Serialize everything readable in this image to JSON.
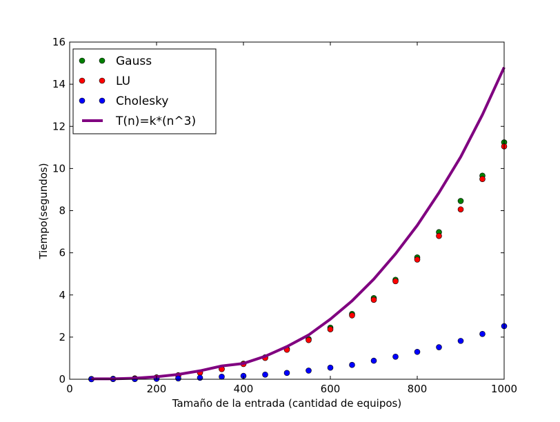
{
  "chart_data": {
    "type": "scatter",
    "title": "",
    "xlabel": "Tamaño de la entrada (cantidad de equipos)",
    "ylabel": "Tiempo(segundos)",
    "xlim": [
      0,
      1000
    ],
    "ylim": [
      0,
      16
    ],
    "xticks": [
      0,
      200,
      400,
      600,
      800,
      1000
    ],
    "yticks": [
      0,
      2,
      4,
      6,
      8,
      10,
      12,
      14,
      16
    ],
    "grid": false,
    "legend_position": "top-left",
    "x": [
      50,
      100,
      150,
      200,
      250,
      300,
      350,
      400,
      450,
      500,
      550,
      600,
      650,
      700,
      750,
      800,
      850,
      900,
      950,
      1000
    ],
    "series": [
      {
        "name": "Gauss",
        "kind": "points",
        "color": "#008000",
        "values": [
          0.01,
          0.02,
          0.04,
          0.09,
          0.19,
          0.32,
          0.49,
          0.74,
          1.04,
          1.44,
          1.91,
          2.45,
          3.1,
          3.85,
          4.72,
          5.78,
          6.98,
          8.46,
          9.66,
          11.24
        ]
      },
      {
        "name": "LU",
        "kind": "points",
        "color": "#ff0000",
        "values": [
          0.01,
          0.02,
          0.04,
          0.08,
          0.18,
          0.31,
          0.48,
          0.72,
          1.01,
          1.4,
          1.86,
          2.37,
          3.03,
          3.77,
          4.65,
          5.68,
          6.8,
          8.06,
          9.5,
          11.05
        ]
      },
      {
        "name": "Cholesky",
        "kind": "points",
        "color": "#0000ff",
        "values": [
          0.0,
          0.01,
          0.01,
          0.02,
          0.04,
          0.07,
          0.12,
          0.16,
          0.22,
          0.3,
          0.41,
          0.55,
          0.68,
          0.88,
          1.07,
          1.3,
          1.52,
          1.82,
          2.15,
          2.52
        ]
      },
      {
        "name": "T(n)=k*(n^3)",
        "kind": "line",
        "color": "#800080",
        "values": [
          0.02,
          0.02,
          0.05,
          0.12,
          0.23,
          0.4,
          0.63,
          0.75,
          1.09,
          1.55,
          2.1,
          2.85,
          3.72,
          4.75,
          5.95,
          7.3,
          8.85,
          10.55,
          12.55,
          14.8
        ]
      }
    ]
  }
}
